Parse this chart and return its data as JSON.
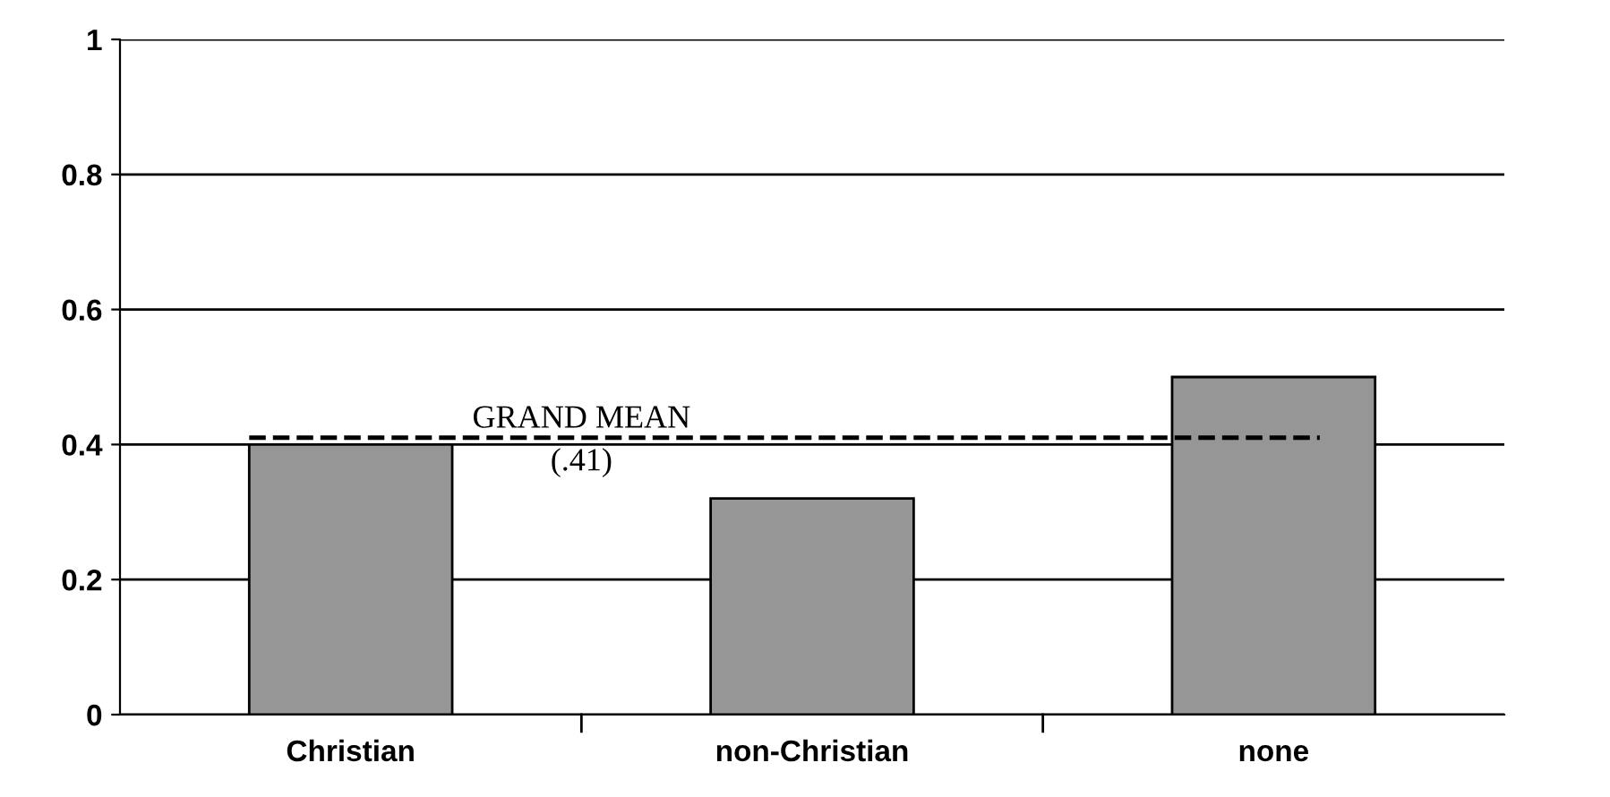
{
  "chart_data": {
    "type": "bar",
    "categories": [
      "Christian",
      "non-Christian",
      "none"
    ],
    "values": [
      0.4,
      0.32,
      0.5
    ],
    "color": "#969696",
    "ylim": [
      0,
      1
    ],
    "yticks": [
      0,
      0.2,
      0.4,
      0.6,
      0.8,
      1
    ],
    "grid": "y",
    "ref_lines": [
      {
        "axis": "y",
        "value": 0.41,
        "label": "GRAND MEAN",
        "color": "#000000",
        "line_style": "dashed"
      }
    ],
    "annotations": [
      "(.41)"
    ]
  }
}
